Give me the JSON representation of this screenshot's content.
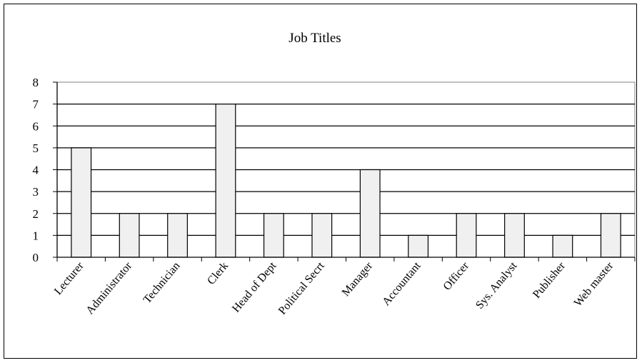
{
  "chart_data": {
    "type": "bar",
    "title": "Job Titles",
    "xlabel": "",
    "ylabel": "",
    "categories": [
      "Lecturer",
      "Administrator",
      "Technician",
      "Clerk",
      "Head of Dept",
      "Political Secrt",
      "Manager",
      "Accountant",
      "Officer",
      "Sys. Analyst",
      "Publisher",
      "Web master"
    ],
    "values": [
      5,
      2,
      2,
      7,
      2,
      2,
      4,
      1,
      2,
      2,
      1,
      2
    ],
    "ylim": [
      0,
      8
    ],
    "yticks": [
      "0",
      "1",
      "2",
      "3",
      "4",
      "5",
      "6",
      "7",
      "8"
    ],
    "grid": true,
    "legend": "none",
    "colors": {
      "bar_fill": "#f0f0f0",
      "bar_stroke": "#000000",
      "grid": "#000000",
      "plot_border": "#808080"
    }
  }
}
